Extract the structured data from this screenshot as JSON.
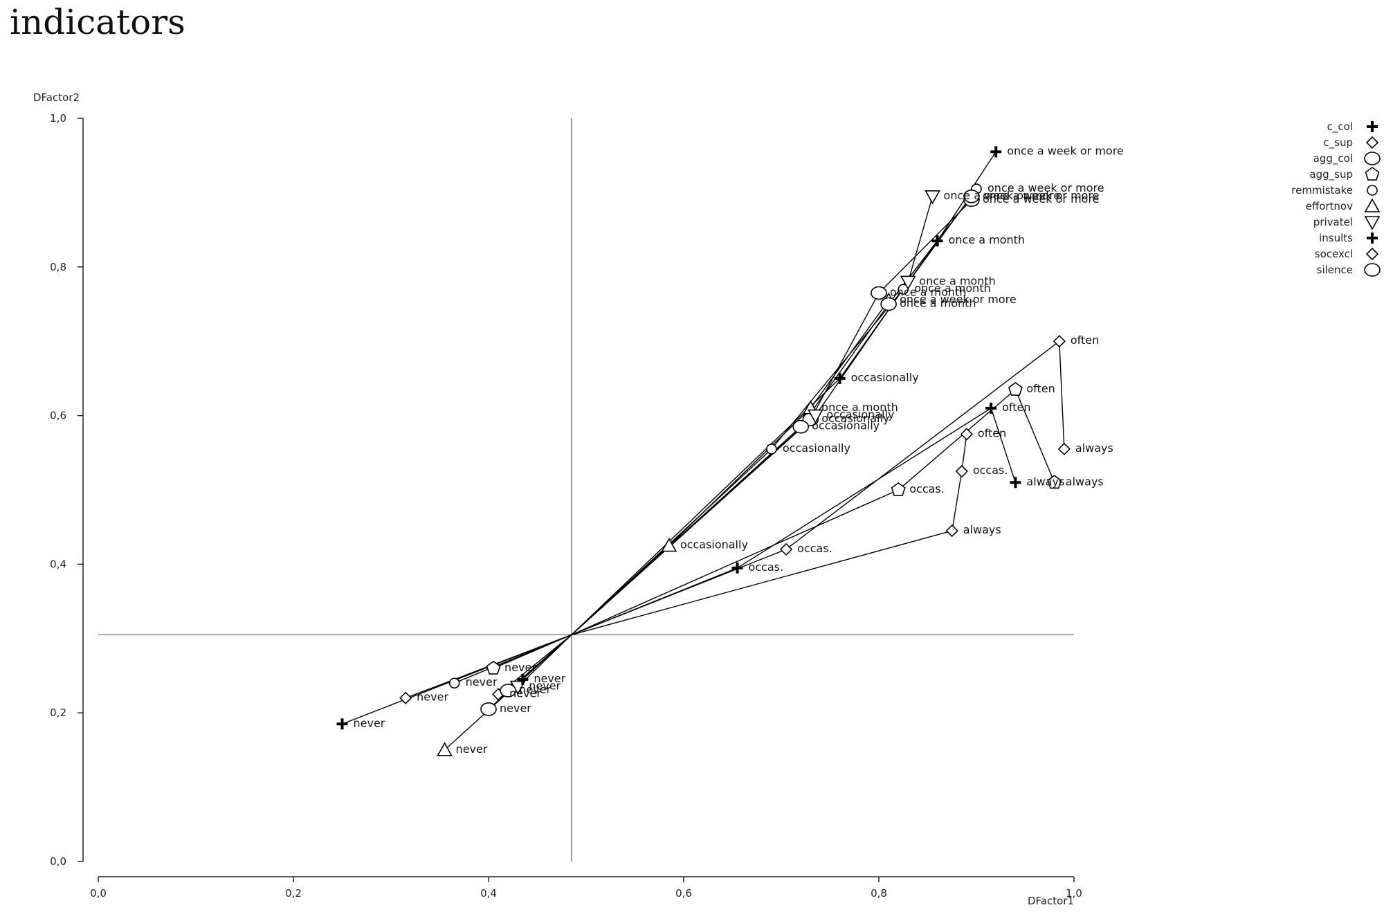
{
  "page": {
    "title": "indicators"
  },
  "chart_data": {
    "type": "scatter",
    "xlabel": "DFactor1",
    "ylabel": "DFactor2",
    "xlim": [
      0,
      1.0
    ],
    "ylim": [
      0,
      1.0
    ],
    "x_ticks": [
      {
        "v": 0,
        "label": "0,0"
      },
      {
        "v": 0.2,
        "label": "0,2"
      },
      {
        "v": 0.4,
        "label": "0,4"
      },
      {
        "v": 0.6,
        "label": "0,6"
      },
      {
        "v": 0.8,
        "label": "0,8"
      },
      {
        "v": 1.0,
        "label": "1,0"
      }
    ],
    "y_ticks": [
      {
        "v": 0,
        "label": "0,0"
      },
      {
        "v": 0.2,
        "label": "0,2"
      },
      {
        "v": 0.4,
        "label": "0,4"
      },
      {
        "v": 0.6,
        "label": "0,6"
      },
      {
        "v": 0.8,
        "label": "0,8"
      },
      {
        "v": 1.0,
        "label": "1,0"
      }
    ],
    "reference_lines": {
      "x": 0.485,
      "y": 0.305
    },
    "centroid": [
      0.485,
      0.305
    ],
    "legend_position": "top-right",
    "series": [
      {
        "name": "c_col",
        "marker": "plus",
        "points": [
          {
            "x": 0.25,
            "y": 0.185,
            "label": "never"
          },
          {
            "x": 0.655,
            "y": 0.395,
            "label": "occas."
          },
          {
            "x": 0.915,
            "y": 0.61,
            "label": "often"
          },
          {
            "x": 0.94,
            "y": 0.51,
            "label": "always"
          }
        ]
      },
      {
        "name": "c_sup",
        "marker": "diamond",
        "points": [
          {
            "x": 0.315,
            "y": 0.22,
            "label": "never"
          },
          {
            "x": 0.705,
            "y": 0.42,
            "label": "occas."
          },
          {
            "x": 0.985,
            "y": 0.7,
            "label": "often"
          },
          {
            "x": 0.99,
            "y": 0.555,
            "label": "always"
          }
        ]
      },
      {
        "name": "agg_col",
        "marker": "circle",
        "points": [
          {
            "x": 0.4,
            "y": 0.205,
            "label": "never"
          },
          {
            "x": 0.73,
            "y": 0.595,
            "label": "occasionally"
          },
          {
            "x": 0.8,
            "y": 0.765,
            "label": "once a month"
          },
          {
            "x": 0.895,
            "y": 0.89,
            "label": "once a week or more"
          }
        ]
      },
      {
        "name": "agg_sup",
        "marker": "pentagon",
        "points": [
          {
            "x": 0.405,
            "y": 0.26,
            "label": "never"
          },
          {
            "x": 0.82,
            "y": 0.5,
            "label": "occas."
          },
          {
            "x": 0.94,
            "y": 0.635,
            "label": "often"
          },
          {
            "x": 0.98,
            "y": 0.51,
            "label": "always"
          }
        ]
      },
      {
        "name": "remmistake",
        "marker": "circle-small",
        "points": [
          {
            "x": 0.365,
            "y": 0.24,
            "label": "never"
          },
          {
            "x": 0.69,
            "y": 0.555,
            "label": "occasionally"
          },
          {
            "x": 0.825,
            "y": 0.77,
            "label": "once a month"
          },
          {
            "x": 0.9,
            "y": 0.905,
            "label": "once a week or more"
          }
        ]
      },
      {
        "name": "effortnov",
        "marker": "triangle-up",
        "points": [
          {
            "x": 0.355,
            "y": 0.15,
            "label": "never"
          },
          {
            "x": 0.585,
            "y": 0.425,
            "label": "occasionally"
          },
          {
            "x": 0.73,
            "y": 0.61,
            "label": "once a month"
          },
          {
            "x": 0.81,
            "y": 0.755,
            "label": "once a week or more"
          }
        ]
      },
      {
        "name": "privatel",
        "marker": "triangle-down",
        "points": [
          {
            "x": 0.43,
            "y": 0.235,
            "label": "never"
          },
          {
            "x": 0.735,
            "y": 0.6,
            "label": "occasionally"
          },
          {
            "x": 0.83,
            "y": 0.78,
            "label": "once a month"
          },
          {
            "x": 0.855,
            "y": 0.895,
            "label": "once a week or more"
          }
        ]
      },
      {
        "name": "insults",
        "marker": "plus",
        "points": [
          {
            "x": 0.435,
            "y": 0.245,
            "label": "never"
          },
          {
            "x": 0.76,
            "y": 0.65,
            "label": "occasionally"
          },
          {
            "x": 0.86,
            "y": 0.835,
            "label": "once a month"
          },
          {
            "x": 0.92,
            "y": 0.955,
            "label": "once a week or more"
          }
        ]
      },
      {
        "name": "socexcl",
        "marker": "diamond",
        "points": [
          {
            "x": 0.41,
            "y": 0.225,
            "label": "never"
          },
          {
            "x": 0.875,
            "y": 0.445,
            "label": "always"
          },
          {
            "x": 0.885,
            "y": 0.525,
            "label": "occas."
          },
          {
            "x": 0.89,
            "y": 0.575,
            "label": "often"
          }
        ]
      },
      {
        "name": "silence",
        "marker": "circle",
        "points": [
          {
            "x": 0.42,
            "y": 0.23,
            "label": "never"
          },
          {
            "x": 0.72,
            "y": 0.585,
            "label": "occasionally"
          },
          {
            "x": 0.81,
            "y": 0.75,
            "label": "once a month"
          },
          {
            "x": 0.895,
            "y": 0.895,
            "label": "once a week or more"
          }
        ]
      }
    ]
  }
}
